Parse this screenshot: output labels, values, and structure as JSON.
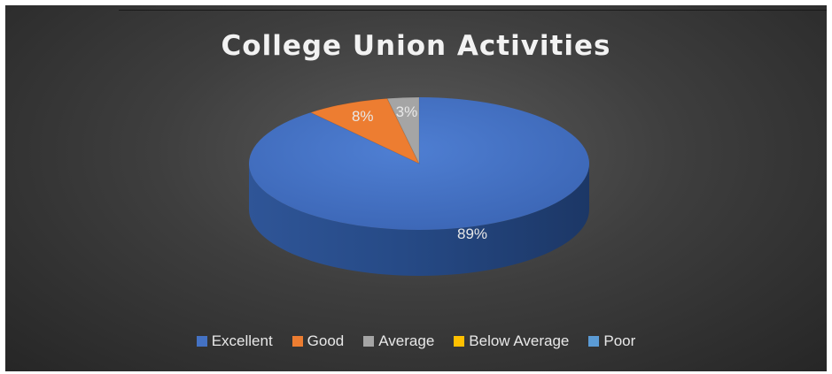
{
  "chart_data": {
    "type": "pie",
    "title": "College Union Activities",
    "categories": [
      "Excellent",
      "Good",
      "Average",
      "Below Average",
      "Poor"
    ],
    "values": [
      89,
      8,
      3,
      0,
      0
    ],
    "data_labels": [
      "89%",
      "8%",
      "3%",
      "",
      ""
    ],
    "colors": [
      "#4472C4",
      "#ED7D31",
      "#A5A5A5",
      "#FFC000",
      "#5B9BD5"
    ],
    "legend_position": "bottom",
    "style": "3d"
  }
}
